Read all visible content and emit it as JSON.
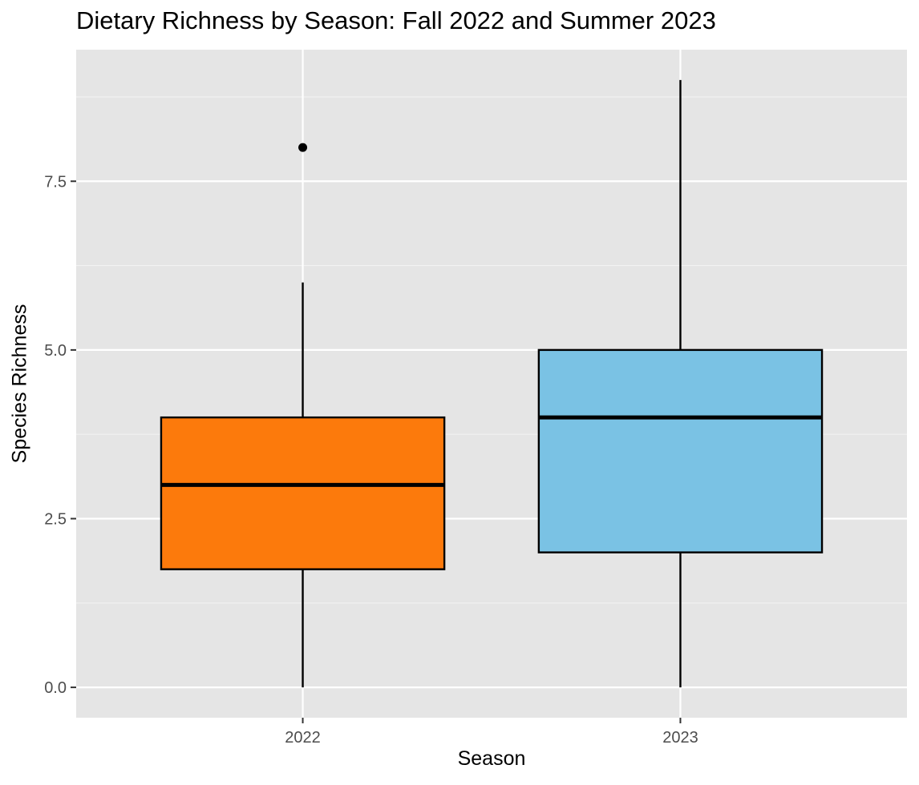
{
  "chart_data": {
    "type": "box",
    "title": "Dietary Richness by Season: Fall 2022 and Summer 2023",
    "xlabel": "Season",
    "ylabel": "Species Richness",
    "categories": [
      "2022",
      "2023"
    ],
    "yticks": [
      0.0,
      2.5,
      5.0,
      7.5
    ],
    "ytick_labels": [
      "0.0",
      "2.5",
      "5.0",
      "7.5"
    ],
    "ylim": [
      -0.45,
      9.45
    ],
    "grid": true,
    "legend": "none",
    "background": "#e5e5e5",
    "boxes": [
      {
        "category": "2022",
        "min": 0,
        "q1": 1.75,
        "median": 3,
        "q3": 4,
        "max": 6,
        "outliers": [
          8
        ],
        "color": "#fc7a0c"
      },
      {
        "category": "2023",
        "min": 0,
        "q1": 2,
        "median": 4,
        "q3": 5,
        "max": 9,
        "outliers": [],
        "color": "#7ac2e4"
      }
    ]
  }
}
